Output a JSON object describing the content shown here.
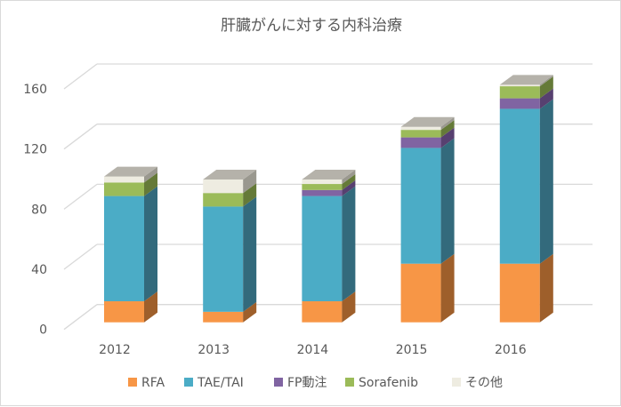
{
  "chart_data": {
    "type": "bar",
    "stacked": true,
    "style": "3d-column",
    "title": "肝臓がんに対する内科治療",
    "xlabel": "",
    "ylabel": "",
    "ylim": [
      0,
      160
    ],
    "yticks": [
      "0",
      "40",
      "80",
      "120",
      "160"
    ],
    "grid": true,
    "legend_position": "bottom",
    "categories": [
      "2012",
      "2013",
      "2014",
      "2015",
      "2016"
    ],
    "series": [
      {
        "name": "RFA",
        "values": [
          14,
          7,
          14,
          39,
          39
        ],
        "color": "#F79646",
        "side": "#9E5F2B"
      },
      {
        "name": "TAE/TAI",
        "values": [
          70,
          70,
          70,
          77,
          103
        ],
        "color": "#4BACC6",
        "side": "#336A7C"
      },
      {
        "name": "FP動注",
        "values": [
          0,
          0,
          4,
          7,
          7
        ],
        "color": "#8064A2",
        "side": "#574070"
      },
      {
        "name": "Sorafenib",
        "values": [
          9,
          9,
          4,
          5,
          8
        ],
        "color": "#9BBB59",
        "side": "#657A38"
      },
      {
        "name": "その他",
        "values": [
          4,
          9,
          3,
          2,
          1
        ],
        "color": "#EEECE1",
        "side": "#9A988F"
      }
    ],
    "top_face_color": "#B5B2AA"
  }
}
